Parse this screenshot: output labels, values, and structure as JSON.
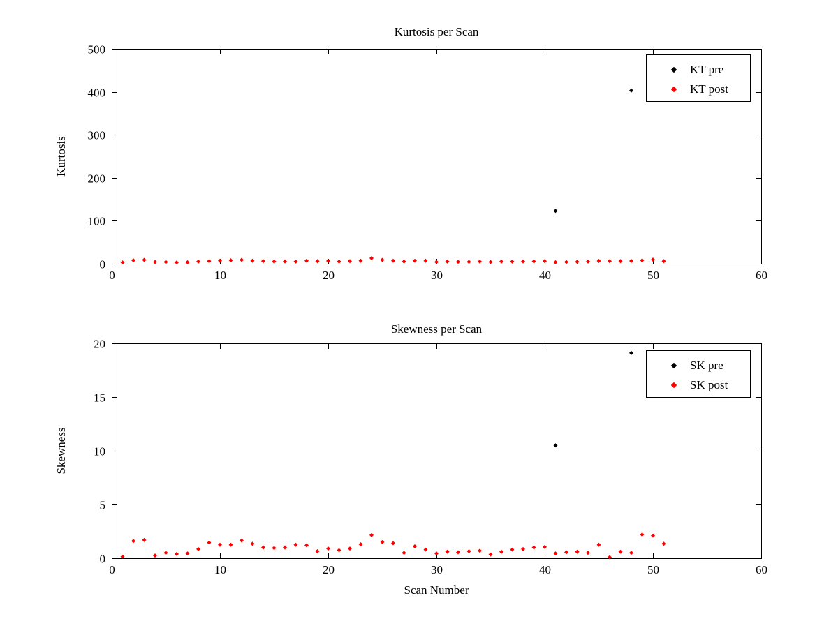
{
  "figure": {
    "background": "#ffffff",
    "axis_color": "#000000"
  },
  "chart_data": [
    {
      "type": "scatter",
      "title": "Kurtosis per Scan",
      "xlabel": "",
      "ylabel": "Kurtosis",
      "xlim": [
        0,
        60
      ],
      "ylim": [
        0,
        500
      ],
      "xticks": [
        0,
        10,
        20,
        30,
        40,
        50,
        60
      ],
      "yticks": [
        0,
        100,
        200,
        300,
        400,
        500
      ],
      "grid": false,
      "legend_position": "top-right",
      "series": [
        {
          "name": "KT pre",
          "color": "#000000",
          "marker": "diamond",
          "x": [
            41,
            48
          ],
          "y": [
            123,
            403
          ]
        },
        {
          "name": "KT post",
          "color": "#ff0000",
          "marker": "diamond",
          "x": [
            1,
            2,
            3,
            4,
            5,
            6,
            7,
            8,
            9,
            10,
            11,
            12,
            13,
            14,
            15,
            16,
            17,
            18,
            19,
            20,
            21,
            22,
            23,
            24,
            25,
            26,
            27,
            28,
            29,
            30,
            31,
            32,
            33,
            34,
            35,
            36,
            37,
            38,
            39,
            40,
            41,
            42,
            43,
            44,
            45,
            46,
            47,
            48,
            49,
            50,
            51
          ],
          "y": [
            3,
            8,
            9,
            4,
            4,
            3,
            3.5,
            5,
            6,
            7,
            8,
            9,
            7,
            6,
            5,
            5.5,
            5,
            7,
            6,
            6.5,
            5,
            6,
            7,
            13,
            9,
            7,
            5,
            7,
            7,
            4,
            5,
            4.5,
            4.5,
            5,
            4,
            5,
            5,
            5.5,
            5.5,
            6,
            3.5,
            4,
            4.5,
            5,
            6.5,
            6,
            6,
            6.5,
            8,
            9.5,
            6
          ]
        }
      ]
    },
    {
      "type": "scatter",
      "title": "Skewness per Scan",
      "xlabel": "Scan Number",
      "ylabel": "Skewness",
      "xlim": [
        0,
        60
      ],
      "ylim": [
        0,
        20
      ],
      "xticks": [
        0,
        10,
        20,
        30,
        40,
        50,
        60
      ],
      "yticks": [
        0,
        5,
        10,
        15,
        20
      ],
      "grid": false,
      "legend_position": "top-right",
      "series": [
        {
          "name": "SK pre",
          "color": "#000000",
          "marker": "diamond",
          "x": [
            41,
            48
          ],
          "y": [
            10.5,
            19.1
          ]
        },
        {
          "name": "SK post",
          "color": "#ff0000",
          "marker": "diamond",
          "x": [
            1,
            2,
            3,
            4,
            5,
            6,
            7,
            8,
            9,
            10,
            11,
            12,
            13,
            14,
            15,
            16,
            17,
            18,
            19,
            20,
            21,
            22,
            23,
            24,
            25,
            26,
            27,
            28,
            29,
            30,
            31,
            32,
            33,
            34,
            35,
            36,
            37,
            38,
            39,
            40,
            41,
            42,
            43,
            44,
            45,
            46,
            47,
            48,
            49,
            50,
            51
          ],
          "y": [
            0.15,
            1.6,
            1.7,
            0.25,
            0.5,
            0.4,
            0.45,
            0.85,
            1.45,
            1.25,
            1.25,
            1.65,
            1.35,
            1.0,
            0.95,
            1.0,
            1.25,
            1.2,
            0.65,
            0.9,
            0.75,
            0.9,
            1.3,
            2.15,
            1.5,
            1.4,
            0.5,
            1.1,
            0.8,
            0.45,
            0.6,
            0.55,
            0.65,
            0.7,
            0.35,
            0.6,
            0.8,
            0.85,
            1.0,
            1.05,
            0.45,
            0.55,
            0.6,
            0.5,
            1.25,
            0.1,
            0.6,
            0.5,
            2.2,
            2.1,
            1.35
          ]
        }
      ]
    }
  ]
}
